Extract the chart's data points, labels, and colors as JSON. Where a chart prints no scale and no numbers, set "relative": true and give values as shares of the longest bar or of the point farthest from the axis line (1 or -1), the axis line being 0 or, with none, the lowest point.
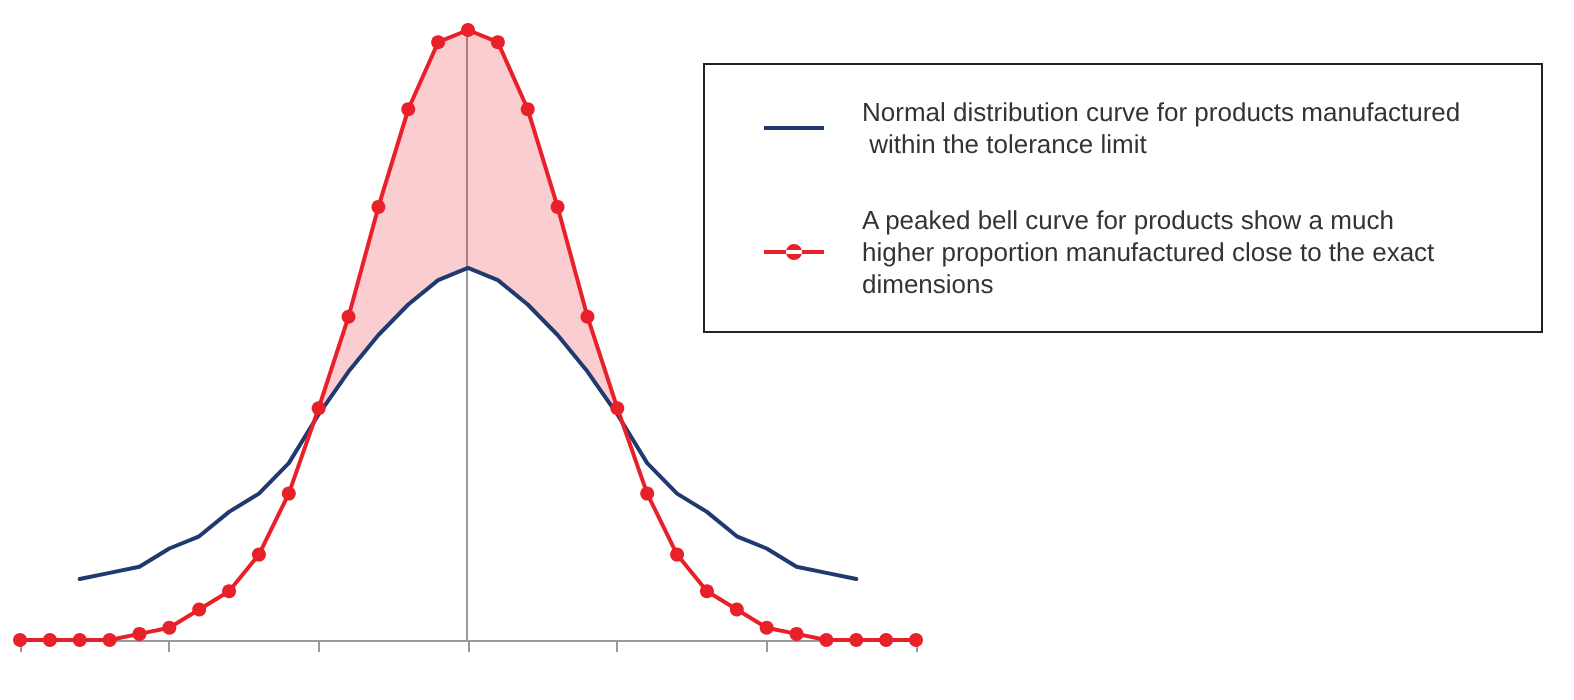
{
  "chart_data": {
    "type": "line",
    "relative": true,
    "categories": [
      null,
      null,
      null,
      null,
      null,
      null,
      null,
      null,
      null,
      null,
      null,
      null,
      null,
      null,
      null,
      null,
      null,
      null,
      null,
      null,
      null,
      null,
      null,
      null,
      null,
      null,
      null,
      null,
      null,
      null,
      null
    ],
    "grid": false,
    "legend": "top right",
    "series": [
      {
        "name": "Normal distribution curve for products manufactured within the tolerance limit",
        "color": "#1f3a6e",
        "marker": "none",
        "values": [
          null,
          null,
          0.1,
          0.11,
          0.12,
          0.15,
          0.17,
          0.21,
          0.24,
          0.29,
          0.37,
          0.44,
          0.5,
          0.55,
          0.59,
          0.61,
          0.59,
          0.55,
          0.5,
          0.44,
          0.37,
          0.29,
          0.24,
          0.21,
          0.17,
          0.15,
          0.12,
          0.11,
          0.1,
          null,
          null
        ]
      },
      {
        "name": "A peaked bell curve for products show a much higher proportion manufactured close to the exact dimensions",
        "color": "#e8202a",
        "marker": "circle",
        "values": [
          0,
          0,
          0,
          0,
          0.01,
          0.02,
          0.05,
          0.08,
          0.14,
          0.24,
          0.38,
          0.53,
          0.71,
          0.87,
          0.98,
          1,
          0.98,
          0.87,
          0.71,
          0.53,
          0.38,
          0.24,
          0.14,
          0.08,
          0.05,
          0.02,
          0.01,
          0,
          0,
          0,
          0
        ],
        "lower": [
          null,
          null,
          null,
          null,
          null,
          null,
          null,
          null,
          null,
          null,
          0.37,
          0.44,
          0.5,
          0.55,
          0.59,
          0.61,
          0.59,
          0.55,
          0.5,
          0.44,
          0.37,
          null,
          null,
          null,
          null,
          null,
          null,
          null,
          null,
          null,
          null
        ],
        "upper": [
          null,
          null,
          null,
          null,
          null,
          null,
          null,
          null,
          null,
          null,
          0.38,
          0.53,
          0.71,
          0.87,
          0.98,
          1,
          0.98,
          0.87,
          0.71,
          0.53,
          0.38,
          null,
          null,
          null,
          null,
          null,
          null,
          null,
          null,
          null,
          null
        ]
      }
    ]
  }
}
